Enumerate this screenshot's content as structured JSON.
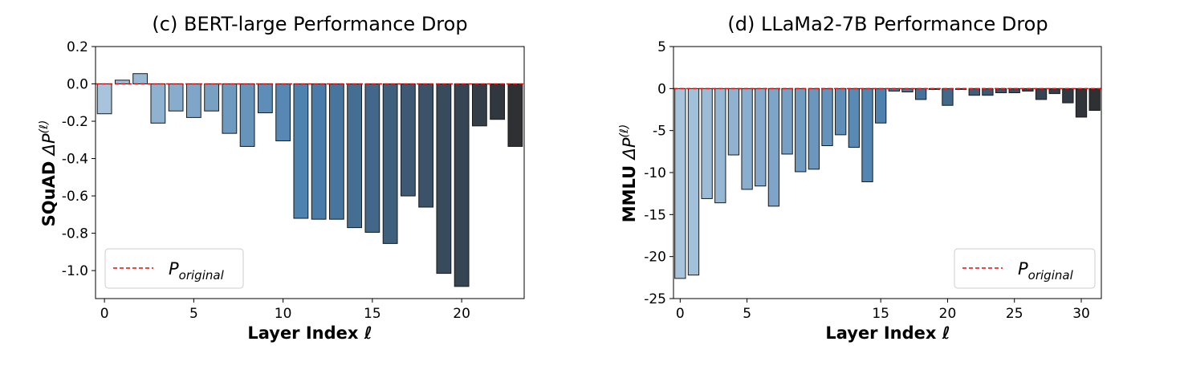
{
  "chart_data": [
    {
      "id": "c",
      "type": "bar",
      "title": "(c) BERT-large Performance Drop",
      "xlabel": "Layer Index ℓ",
      "ylabel_bold": "SQuAD",
      "ylabel_math": "ΔP",
      "ylabel_sup": "(ℓ)",
      "xlim": [
        -0.5,
        23.5
      ],
      "ylim": [
        -1.15,
        0.2
      ],
      "xticks": [
        0,
        5,
        10,
        15,
        20
      ],
      "yticks": [
        0.2,
        0.0,
        -0.2,
        -0.4,
        -0.6,
        -0.8,
        -1.0
      ],
      "ytick_labels": [
        "0.2",
        "0.0",
        "-0.2",
        "-0.4",
        "-0.6",
        "-0.8",
        "-1.0"
      ],
      "x": [
        0,
        1,
        2,
        3,
        4,
        5,
        6,
        7,
        8,
        9,
        10,
        11,
        12,
        13,
        14,
        15,
        16,
        17,
        18,
        19,
        20,
        21,
        22,
        23
      ],
      "values": [
        -0.16,
        0.02,
        0.055,
        -0.21,
        -0.145,
        -0.18,
        -0.145,
        -0.265,
        -0.335,
        -0.155,
        -0.305,
        -0.72,
        -0.725,
        -0.725,
        -0.77,
        -0.795,
        -0.855,
        -0.6,
        -0.66,
        -1.015,
        -1.085,
        -0.225,
        -0.19,
        -0.335
      ],
      "reference_line": 0,
      "legend": {
        "label_main": "P",
        "label_sub": "original",
        "placement": "lower-left"
      },
      "colors": {
        "start": "#a8c4dc",
        "mid": "#4a7fad",
        "end": "#2f3033",
        "edge": "#1a1a1a",
        "reference": "#ff0000"
      }
    },
    {
      "id": "d",
      "type": "bar",
      "title": "(d) LLaMa2-7B Performance Drop",
      "xlabel": "Layer Index ℓ",
      "ylabel_bold": "MMLU",
      "ylabel_math": "ΔP",
      "ylabel_sup": "(ℓ)",
      "xlim": [
        -0.5,
        31.5
      ],
      "ylim": [
        -25,
        5
      ],
      "xticks": [
        0,
        5,
        15,
        20,
        25,
        30
      ],
      "yticks": [
        5,
        0,
        -5,
        -10,
        -15,
        -20,
        -25
      ],
      "ytick_labels": [
        "5",
        "0",
        "-5",
        "-10",
        "-15",
        "-20",
        "-25"
      ],
      "x": [
        0,
        1,
        2,
        3,
        4,
        5,
        6,
        7,
        8,
        9,
        10,
        11,
        12,
        13,
        14,
        15,
        16,
        17,
        18,
        19,
        20,
        21,
        22,
        23,
        24,
        25,
        26,
        27,
        28,
        29,
        30,
        31
      ],
      "values": [
        -22.6,
        -22.2,
        -13.1,
        -13.6,
        -7.9,
        -12.0,
        -11.6,
        -14.0,
        -7.8,
        -9.9,
        -9.6,
        -6.8,
        -5.5,
        -7.0,
        -11.1,
        -4.1,
        -0.3,
        -0.4,
        -1.3,
        -0.1,
        -2.0,
        -0.1,
        -0.8,
        -0.8,
        -0.5,
        -0.5,
        -0.3,
        -1.3,
        -0.6,
        -1.7,
        -3.4,
        -2.6
      ],
      "reference_line": 0,
      "legend": {
        "label_main": "P",
        "label_sub": "original",
        "placement": "lower-right"
      },
      "colors": {
        "start": "#a8c4dc",
        "mid": "#4a7fad",
        "end": "#2f3033",
        "edge": "#1a1a1a",
        "reference": "#ff0000"
      }
    }
  ]
}
